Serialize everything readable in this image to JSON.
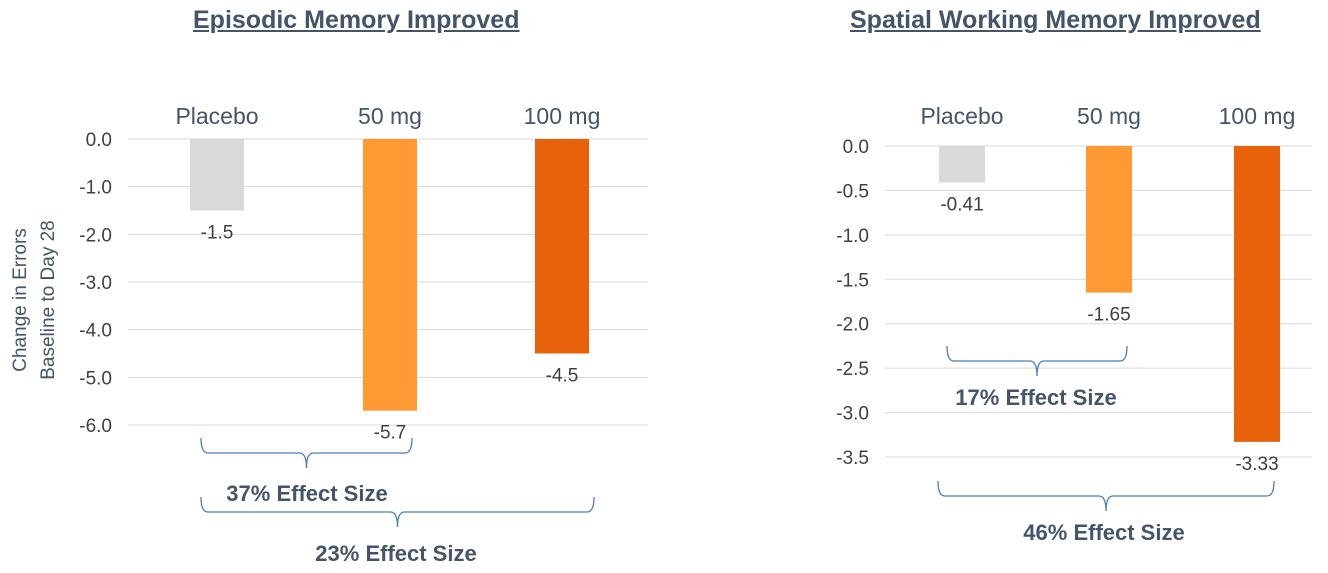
{
  "chart_data": [
    {
      "type": "bar",
      "title": "Episodic Memory Improved",
      "ylabel": "Change in Errors Baseline to Day 28",
      "ylabel_lines": [
        "Change in Errors",
        "Baseline to Day 28"
      ],
      "categories": [
        "Placebo",
        "50 mg",
        "100 mg"
      ],
      "values": [
        -1.5,
        -5.7,
        -4.5
      ],
      "value_labels": [
        "-1.5",
        "-5.7",
        "-4.5"
      ],
      "colors": [
        "#d9d9d9",
        "#ff9933",
        "#e8610b"
      ],
      "yticks": [
        "0.0",
        "-1.0",
        "-2.0",
        "-3.0",
        "-4.0",
        "-5.0",
        "-6.0"
      ],
      "ylim": [
        -6.0,
        0.0
      ],
      "x_axis_position": "top",
      "annotations": [
        {
          "text": "37% Effect Size",
          "from": "Placebo",
          "to": "50 mg"
        },
        {
          "text": "23% Effect Size",
          "from": "Placebo",
          "to": "100 mg"
        }
      ]
    },
    {
      "type": "bar",
      "title": "Spatial Working Memory Improved",
      "categories": [
        "Placebo",
        "50 mg",
        "100 mg"
      ],
      "values": [
        -0.41,
        -1.65,
        -3.33
      ],
      "value_labels": [
        "-0.41",
        "-1.65",
        "-3.33"
      ],
      "colors": [
        "#d9d9d9",
        "#ff9933",
        "#e8610b"
      ],
      "yticks": [
        "0.0",
        "-0.5",
        "-1.0",
        "-1.5",
        "-2.0",
        "-2.5",
        "-3.0",
        "-3.5"
      ],
      "ylim": [
        -3.5,
        0.0
      ],
      "x_axis_position": "top",
      "annotations": [
        {
          "text": "17% Effect Size",
          "from": "Placebo",
          "to": "50 mg"
        },
        {
          "text": "46% Effect Size",
          "from": "Placebo",
          "to": "100 mg"
        }
      ]
    }
  ]
}
